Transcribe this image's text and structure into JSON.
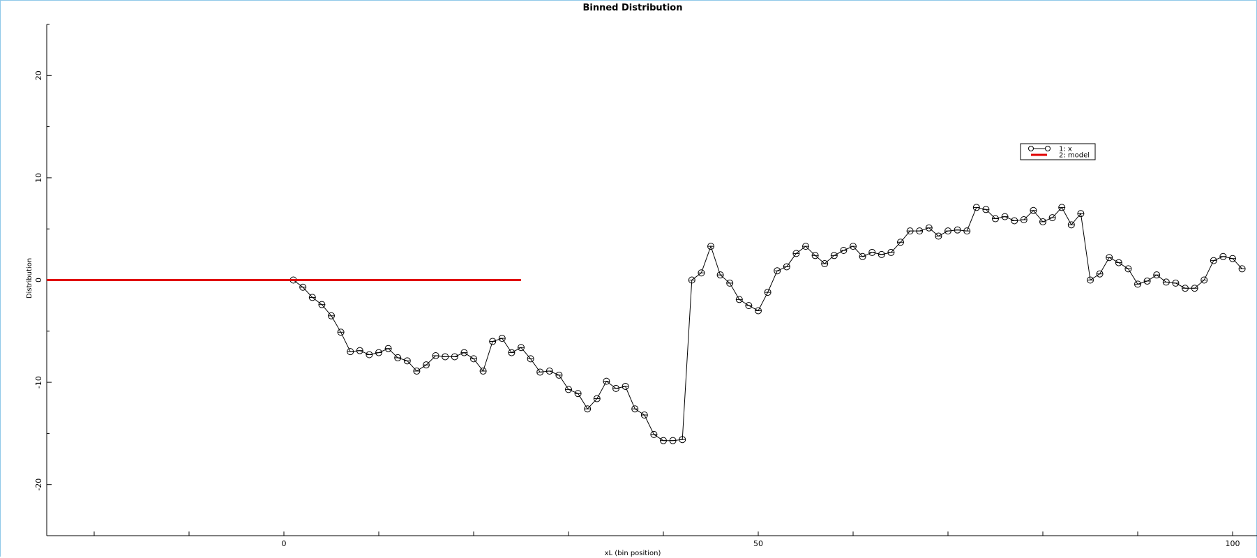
{
  "chart_data": {
    "type": "line",
    "title": "Binned Distribution",
    "xlabel": "xL (bin position)",
    "ylabel": "Distribution",
    "xlim": [
      -25,
      100
    ],
    "ylim": [
      -25,
      25
    ],
    "x_ticks": [
      0,
      50,
      100
    ],
    "y_ticks": [
      20,
      10,
      0,
      -10,
      -20
    ],
    "x_minor_step": 10,
    "grid": false,
    "legend": {
      "placement": "upper-right",
      "entries": [
        "1: x",
        "2: model"
      ]
    },
    "series": [
      {
        "name": "1: x",
        "color": "#000000",
        "marker": "circle",
        "x": [
          1,
          2,
          3,
          4,
          5,
          6,
          7,
          8,
          9,
          10,
          11,
          12,
          13,
          14,
          15,
          16,
          17,
          18,
          19,
          20,
          21,
          22,
          23,
          24,
          25,
          26,
          27,
          28,
          29,
          30,
          31,
          32,
          33,
          34,
          35,
          36,
          37,
          38,
          39,
          40,
          41,
          42,
          43,
          44,
          45,
          46,
          47,
          48,
          49,
          50,
          51,
          52,
          53,
          54,
          55,
          56,
          57,
          58,
          59,
          60,
          61,
          62,
          63,
          64,
          65,
          66,
          67,
          68,
          69,
          70,
          71,
          72,
          73,
          74,
          75,
          76,
          77,
          78,
          79,
          80,
          81,
          82,
          83,
          84,
          85,
          86,
          87,
          88,
          89,
          90,
          91,
          92,
          93,
          94,
          95,
          96,
          97,
          98,
          99,
          100,
          101
        ],
        "y": [
          0,
          -0.7,
          -1.7,
          -2.4,
          -3.5,
          -5.1,
          -7.0,
          -6.9,
          -7.3,
          -7.1,
          -6.7,
          -7.6,
          -7.9,
          -8.9,
          -8.3,
          -7.4,
          -7.5,
          -7.5,
          -7.1,
          -7.7,
          -8.9,
          -6.0,
          -5.7,
          -7.1,
          -6.6,
          -7.7,
          -9.0,
          -8.9,
          -9.3,
          -10.7,
          -11.1,
          -12.6,
          -11.6,
          -9.9,
          -10.6,
          -10.4,
          -12.6,
          -13.2,
          -15.1,
          -15.7,
          -15.7,
          -15.6,
          0,
          0.7,
          3.3,
          0.5,
          -0.3,
          -1.9,
          -2.5,
          -3.0,
          -1.2,
          0.9,
          1.3,
          2.6,
          3.3,
          2.4,
          1.6,
          2.4,
          2.9,
          3.3,
          2.3,
          2.7,
          2.5,
          2.7,
          3.7,
          4.8,
          4.8,
          5.1,
          4.3,
          4.8,
          4.9,
          4.8,
          7.1,
          6.9,
          6.0,
          6.2,
          5.8,
          5.9,
          6.8,
          5.7,
          6.1,
          7.1,
          5.4,
          6.5,
          0,
          0.6,
          2.2,
          1.7,
          1.1,
          -0.4,
          -0.1,
          0.5,
          -0.2,
          -0.3,
          -0.8,
          -0.8,
          0,
          1.9,
          2.3,
          2.1,
          1.1
        ]
      },
      {
        "name": "2: model",
        "color": "#e00000",
        "marker": "none",
        "x": [
          -25,
          25
        ],
        "y": [
          0,
          0
        ]
      }
    ]
  }
}
